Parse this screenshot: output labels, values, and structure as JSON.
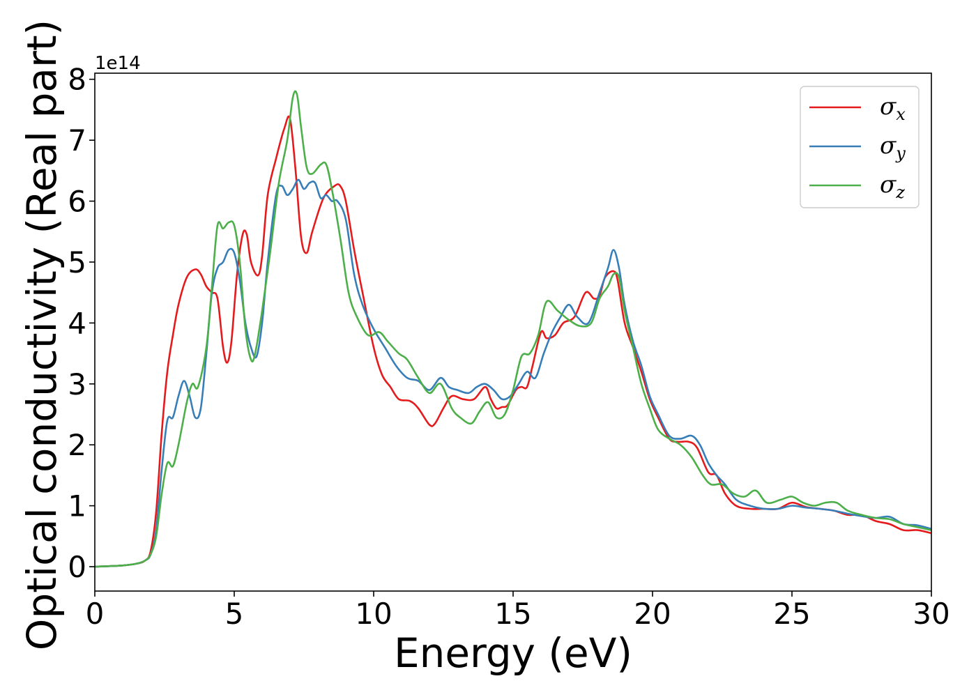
{
  "chart_data": {
    "type": "line",
    "xlabel": "Energy (eV)",
    "ylabel": "Optical conductivity (Real part)",
    "y_offset_label": "1e14",
    "xlim": [
      0,
      30
    ],
    "ylim": [
      -0.4,
      8.1
    ],
    "xticks": [
      0,
      5,
      10,
      15,
      20,
      25,
      30
    ],
    "xtick_labels": [
      "0",
      "5",
      "10",
      "15",
      "20",
      "25",
      "30"
    ],
    "yticks": [
      0,
      1,
      2,
      3,
      4,
      5,
      6,
      7,
      8
    ],
    "ytick_labels": [
      "0",
      "1",
      "2",
      "3",
      "4",
      "5",
      "6",
      "7",
      "8"
    ],
    "grid": false,
    "legend_position": "top-right",
    "series": [
      {
        "name": "σ_x",
        "symbol": "σ",
        "subscript": "x",
        "color": "#e41a1c",
        "x": [
          0,
          1,
          1.5,
          1.8,
          2.0,
          2.2,
          2.4,
          2.6,
          2.8,
          3.0,
          3.3,
          3.6,
          3.8,
          4.0,
          4.2,
          4.4,
          4.6,
          4.75,
          4.9,
          5.1,
          5.3,
          5.45,
          5.6,
          5.85,
          6.0,
          6.2,
          6.5,
          6.8,
          7.0,
          7.2,
          7.4,
          7.6,
          7.8,
          8.2,
          8.6,
          8.8,
          9.0,
          9.3,
          9.6,
          10.0,
          10.3,
          10.6,
          10.9,
          11.3,
          11.6,
          12.0,
          12.2,
          12.5,
          12.8,
          13.2,
          13.6,
          14.0,
          14.2,
          14.4,
          14.6,
          14.8,
          15.1,
          15.3,
          15.5,
          15.7,
          16.0,
          16.2,
          16.5,
          16.8,
          17.2,
          17.6,
          17.9,
          18.1,
          18.3,
          18.6,
          18.75,
          19.0,
          19.3,
          19.6,
          19.9,
          20.2,
          20.6,
          20.9,
          21.3,
          21.6,
          22.0,
          22.3,
          22.6,
          23.0,
          23.5,
          24.0,
          24.5,
          25.0,
          25.5,
          26.0,
          26.5,
          27.0,
          27.5,
          28.0,
          28.5,
          29.0,
          29.5,
          30.0
        ],
        "y": [
          0,
          0.02,
          0.05,
          0.1,
          0.25,
          0.9,
          2.2,
          3.2,
          3.8,
          4.3,
          4.75,
          4.88,
          4.8,
          4.6,
          4.5,
          4.4,
          3.6,
          3.35,
          3.7,
          4.8,
          5.45,
          5.45,
          5.0,
          4.78,
          5.1,
          6.1,
          6.7,
          7.2,
          7.35,
          6.5,
          5.4,
          5.15,
          5.5,
          6.05,
          6.25,
          6.25,
          6.0,
          5.2,
          4.5,
          3.6,
          3.15,
          2.95,
          2.75,
          2.72,
          2.6,
          2.33,
          2.35,
          2.6,
          2.8,
          2.75,
          2.75,
          2.95,
          2.75,
          2.6,
          2.62,
          2.65,
          2.9,
          2.95,
          2.95,
          3.3,
          3.85,
          3.75,
          3.8,
          4.0,
          4.1,
          4.5,
          4.4,
          4.45,
          4.75,
          4.85,
          4.7,
          4.0,
          3.6,
          3.2,
          2.75,
          2.45,
          2.1,
          2.05,
          2.05,
          1.95,
          1.55,
          1.5,
          1.2,
          1.0,
          0.95,
          0.95,
          0.95,
          1.05,
          0.98,
          0.95,
          0.92,
          0.85,
          0.85,
          0.75,
          0.7,
          0.6,
          0.6,
          0.55
        ]
      },
      {
        "name": "σ_y",
        "symbol": "σ",
        "subscript": "y",
        "color": "#377eb8",
        "x": [
          0,
          1,
          1.5,
          1.8,
          2.0,
          2.2,
          2.4,
          2.6,
          2.8,
          3.0,
          3.2,
          3.4,
          3.6,
          3.8,
          4.0,
          4.2,
          4.4,
          4.6,
          4.8,
          5.0,
          5.2,
          5.4,
          5.6,
          5.8,
          6.0,
          6.2,
          6.5,
          6.7,
          6.9,
          7.1,
          7.3,
          7.5,
          7.7,
          7.9,
          8.1,
          8.3,
          8.5,
          8.7,
          9.0,
          9.3,
          9.6,
          10.0,
          10.4,
          10.8,
          11.2,
          11.6,
          12.0,
          12.4,
          12.7,
          13.0,
          13.4,
          13.7,
          14.0,
          14.3,
          14.6,
          14.9,
          15.2,
          15.5,
          15.8,
          16.1,
          16.4,
          16.7,
          17.0,
          17.3,
          17.7,
          18.1,
          18.4,
          18.6,
          18.8,
          19.0,
          19.3,
          19.6,
          19.9,
          20.2,
          20.6,
          21.0,
          21.4,
          21.7,
          22.0,
          22.3,
          22.6,
          23.0,
          23.5,
          24.0,
          24.5,
          25.0,
          25.5,
          26.0,
          26.5,
          27.0,
          27.5,
          28.0,
          28.5,
          29.0,
          29.5,
          30.0
        ],
        "y": [
          0,
          0.02,
          0.05,
          0.1,
          0.2,
          0.6,
          1.6,
          2.4,
          2.45,
          2.8,
          3.05,
          2.8,
          2.45,
          2.6,
          3.5,
          4.5,
          4.9,
          5.0,
          5.2,
          5.15,
          4.7,
          4.0,
          3.6,
          3.45,
          4.0,
          5.0,
          6.1,
          6.25,
          6.1,
          6.2,
          6.35,
          6.2,
          6.3,
          6.3,
          6.05,
          6.1,
          6.0,
          6.0,
          5.7,
          4.8,
          4.3,
          3.9,
          3.6,
          3.3,
          3.1,
          3.05,
          2.9,
          3.1,
          2.95,
          2.9,
          2.85,
          2.95,
          3.0,
          2.9,
          2.75,
          2.8,
          3.0,
          3.2,
          3.1,
          3.5,
          3.85,
          4.1,
          4.3,
          4.1,
          4.0,
          4.5,
          4.9,
          5.2,
          4.9,
          4.3,
          3.7,
          3.3,
          2.8,
          2.5,
          2.15,
          2.1,
          2.15,
          2.0,
          1.7,
          1.5,
          1.35,
          1.1,
          1.0,
          0.95,
          0.95,
          1.0,
          0.97,
          0.95,
          0.92,
          0.87,
          0.83,
          0.8,
          0.82,
          0.7,
          0.68,
          0.62
        ]
      },
      {
        "name": "σ_z",
        "symbol": "σ",
        "subscript": "z",
        "color": "#4daf4a",
        "x": [
          0,
          1,
          1.5,
          1.8,
          2.0,
          2.2,
          2.4,
          2.6,
          2.8,
          3.0,
          3.3,
          3.5,
          3.7,
          4.0,
          4.2,
          4.4,
          4.6,
          4.8,
          5.0,
          5.2,
          5.4,
          5.6,
          5.75,
          6.0,
          6.3,
          6.6,
          6.9,
          7.1,
          7.25,
          7.4,
          7.6,
          7.8,
          8.1,
          8.3,
          8.5,
          8.8,
          9.1,
          9.4,
          9.8,
          10.2,
          10.5,
          10.9,
          11.2,
          11.6,
          12.0,
          12.4,
          12.8,
          13.1,
          13.5,
          13.8,
          14.1,
          14.4,
          14.7,
          15.0,
          15.3,
          15.6,
          15.9,
          16.2,
          16.6,
          17.0,
          17.4,
          17.8,
          18.1,
          18.4,
          18.6,
          18.8,
          19.0,
          19.3,
          19.6,
          19.9,
          20.2,
          20.6,
          21.0,
          21.4,
          21.8,
          22.1,
          22.5,
          22.9,
          23.3,
          23.7,
          24.1,
          24.6,
          25.0,
          25.4,
          25.8,
          26.2,
          26.6,
          27.0,
          27.5,
          28.0,
          28.5,
          29.0,
          29.5,
          30.0
        ],
        "y": [
          0,
          0.02,
          0.05,
          0.1,
          0.2,
          0.5,
          1.2,
          1.7,
          1.65,
          2.0,
          2.7,
          3.0,
          2.95,
          3.6,
          4.6,
          5.6,
          5.55,
          5.65,
          5.6,
          5.0,
          3.9,
          3.4,
          3.5,
          4.2,
          5.2,
          6.3,
          7.0,
          7.7,
          7.75,
          7.2,
          6.55,
          6.45,
          6.6,
          6.6,
          6.2,
          5.4,
          4.5,
          4.1,
          3.8,
          3.85,
          3.7,
          3.5,
          3.4,
          3.1,
          2.85,
          3.0,
          2.6,
          2.45,
          2.35,
          2.55,
          2.7,
          2.45,
          2.5,
          2.9,
          3.45,
          3.5,
          3.8,
          4.35,
          4.2,
          4.05,
          3.95,
          4.0,
          4.4,
          4.6,
          4.8,
          4.75,
          4.2,
          3.6,
          3.0,
          2.6,
          2.25,
          2.1,
          2.0,
          1.8,
          1.5,
          1.35,
          1.35,
          1.2,
          1.15,
          1.25,
          1.05,
          1.1,
          1.15,
          1.05,
          1.0,
          1.05,
          1.05,
          0.92,
          0.85,
          0.8,
          0.78,
          0.7,
          0.65,
          0.6
        ]
      }
    ]
  }
}
